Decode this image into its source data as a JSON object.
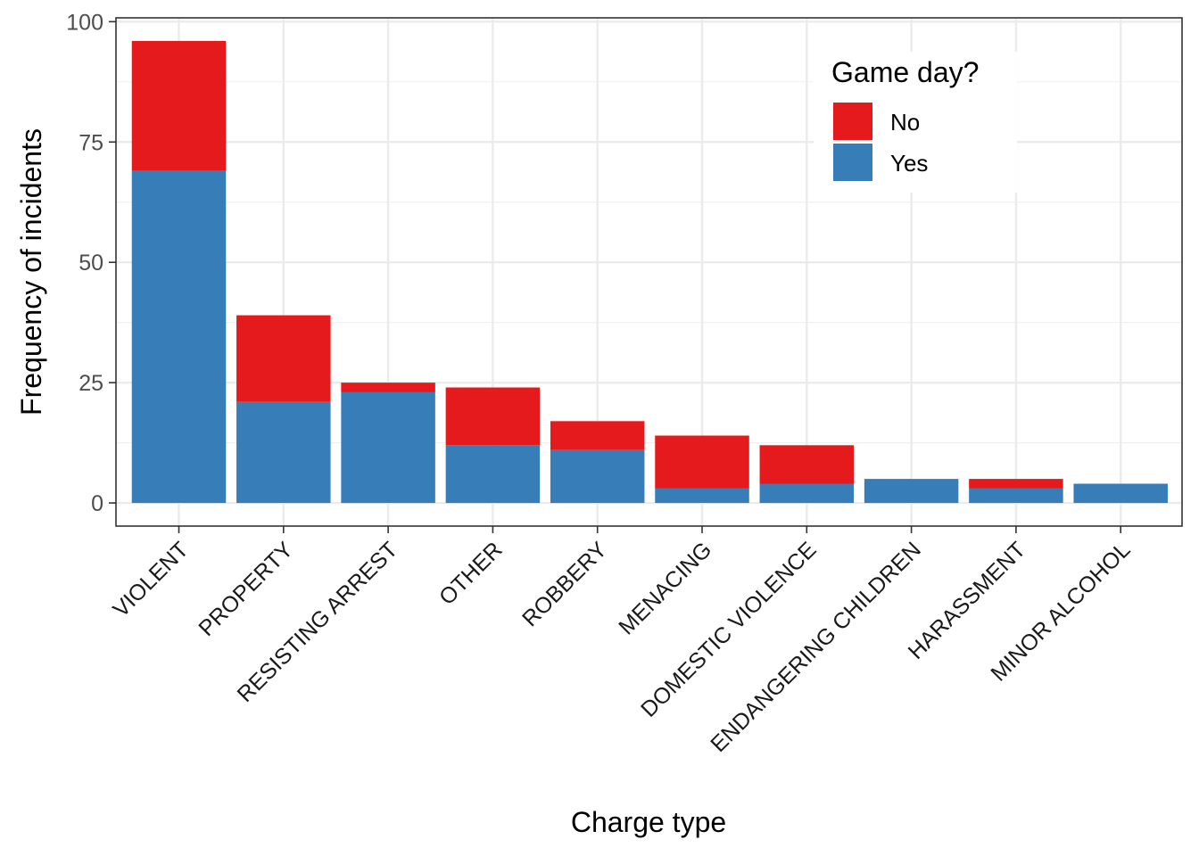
{
  "chart_data": {
    "type": "bar",
    "stacked": true,
    "categories": [
      "VIOLENT",
      "PROPERTY",
      "RESISTING ARREST",
      "OTHER",
      "ROBBERY",
      "MENACING",
      "DOMESTIC VIOLENCE",
      "ENDANGERING CHILDREN",
      "HARASSMENT",
      "MINOR ALCOHOL"
    ],
    "series": [
      {
        "name": "Yes",
        "color": "#377eb8",
        "values": [
          69,
          21,
          23,
          12,
          11,
          3,
          4,
          5,
          3,
          4
        ]
      },
      {
        "name": "No",
        "color": "#e41a1c",
        "values": [
          27,
          18,
          2,
          12,
          6,
          11,
          8,
          0,
          2,
          0
        ]
      }
    ],
    "xlabel": "Charge type",
    "ylabel": "Frequency of incidents",
    "ylim": [
      -4.8,
      100.8
    ],
    "yticks": [
      0,
      25,
      50,
      75,
      100
    ],
    "grid": true,
    "legend": {
      "title": "Game day?",
      "position": "top-right",
      "entries": [
        {
          "label": "No",
          "color": "#e41a1c"
        },
        {
          "label": "Yes",
          "color": "#377eb8"
        }
      ]
    }
  }
}
